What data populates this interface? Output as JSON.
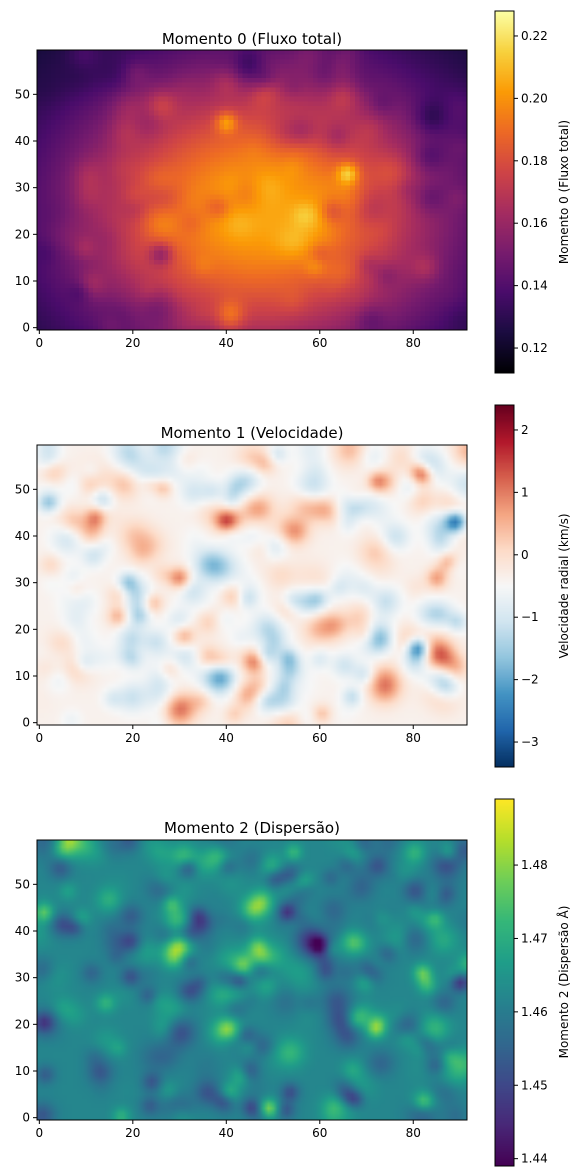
{
  "chart_data": [
    {
      "type": "heatmap",
      "title": "Momento 0 (Fluxo total)",
      "xlabel": "",
      "ylabel": "",
      "x_ticks": [
        "0",
        "20",
        "40",
        "60",
        "80"
      ],
      "y_ticks": [
        "0",
        "10",
        "20",
        "30",
        "40",
        "50"
      ],
      "xlim": [
        0,
        92
      ],
      "ylim": [
        0,
        60
      ],
      "colormap": "inferno",
      "colormap_stops": [
        "#000004",
        "#1b0c41",
        "#4a0c6b",
        "#781c6d",
        "#a52c60",
        "#cf4446",
        "#ed6925",
        "#fb9b06",
        "#f7d13d",
        "#fcffa4"
      ],
      "colorbar": {
        "label": "Momento 0 (Fluxo total)",
        "range": [
          0.112,
          0.228
        ],
        "ticks": [
          "0.12",
          "0.14",
          "0.16",
          "0.18",
          "0.20",
          "0.22"
        ],
        "tick_values": [
          0.12,
          0.14,
          0.16,
          0.18,
          0.2,
          0.22
        ]
      },
      "features": {
        "center": [
          47,
          25
        ],
        "center_value": 0.205,
        "edge_value": 0.13,
        "corner_value": 0.115,
        "bright_spots": [
          {
            "x": 40,
            "y": 44,
            "value": 0.215
          },
          {
            "x": 66,
            "y": 33,
            "value": 0.222
          },
          {
            "x": 59,
            "y": 13,
            "value": 0.19
          },
          {
            "x": 35,
            "y": 3,
            "value": 0.18
          }
        ]
      }
    },
    {
      "type": "heatmap",
      "title": "Momento 1 (Velocidade)",
      "xlabel": "",
      "ylabel": "",
      "x_ticks": [
        "0",
        "20",
        "40",
        "60",
        "80"
      ],
      "y_ticks": [
        "0",
        "10",
        "20",
        "30",
        "40",
        "50"
      ],
      "xlim": [
        0,
        92
      ],
      "ylim": [
        0,
        60
      ],
      "colormap": "RdBu_r",
      "colormap_stops": [
        "#053061",
        "#2166ac",
        "#4393c3",
        "#92c5de",
        "#d1e5f0",
        "#f7f7f7",
        "#fddbc7",
        "#f4a582",
        "#d6604d",
        "#b2182b",
        "#67001f"
      ],
      "colorbar": {
        "label": "Velocidade radial (km/s)",
        "range": [
          -3.4,
          2.4
        ],
        "ticks": [
          "−3",
          "−2",
          "−1",
          "0",
          "1",
          "2"
        ],
        "tick_values": [
          -3,
          -2,
          -1,
          0,
          1,
          2
        ]
      },
      "features": {
        "red_spots": [
          {
            "x": 82,
            "y": 53,
            "value": 2.2
          },
          {
            "x": 30,
            "y": 31,
            "value": 2.0
          },
          {
            "x": 12,
            "y": 44,
            "value": 1.7
          },
          {
            "x": 46,
            "y": 13,
            "value": 1.6
          },
          {
            "x": 85,
            "y": 31,
            "value": 1.5
          }
        ],
        "blue_spots": [
          {
            "x": 81,
            "y": 16,
            "value": -3.0
          },
          {
            "x": 89,
            "y": 43,
            "value": -2.8
          },
          {
            "x": 2,
            "y": 47,
            "value": -1.8
          }
        ]
      }
    },
    {
      "type": "heatmap",
      "title": "Momento 2 (Dispersão)",
      "xlabel": "",
      "ylabel": "",
      "x_ticks": [
        "0",
        "20",
        "40",
        "60",
        "80"
      ],
      "y_ticks": [
        "0",
        "10",
        "20",
        "30",
        "40",
        "50"
      ],
      "xlim": [
        0,
        92
      ],
      "ylim": [
        0,
        60
      ],
      "colormap": "viridis",
      "colormap_stops": [
        "#440154",
        "#482878",
        "#3e4989",
        "#31688e",
        "#26828e",
        "#1f9e89",
        "#35b779",
        "#6ece58",
        "#b5de2b",
        "#fde725"
      ],
      "colorbar": {
        "label": "Momento 2 (Dispersão Å)",
        "range": [
          1.439,
          1.489
        ],
        "ticks": [
          "1.44",
          "1.45",
          "1.46",
          "1.47",
          "1.48"
        ],
        "tick_values": [
          1.44,
          1.45,
          1.46,
          1.47,
          1.48
        ]
      },
      "features": {
        "mean_value": 1.462,
        "bright_spots": [
          {
            "x": 49,
            "y": 2,
            "value": 1.487
          },
          {
            "x": 72,
            "y": 19,
            "value": 1.482
          },
          {
            "x": 82,
            "y": 31,
            "value": 1.48
          },
          {
            "x": 1,
            "y": 44,
            "value": 1.479
          }
        ],
        "dark_spots": [
          {
            "x": 90,
            "y": 29,
            "value": 1.441
          },
          {
            "x": 53,
            "y": 44,
            "value": 1.443
          },
          {
            "x": 60,
            "y": 37,
            "value": 1.444
          }
        ]
      }
    }
  ]
}
